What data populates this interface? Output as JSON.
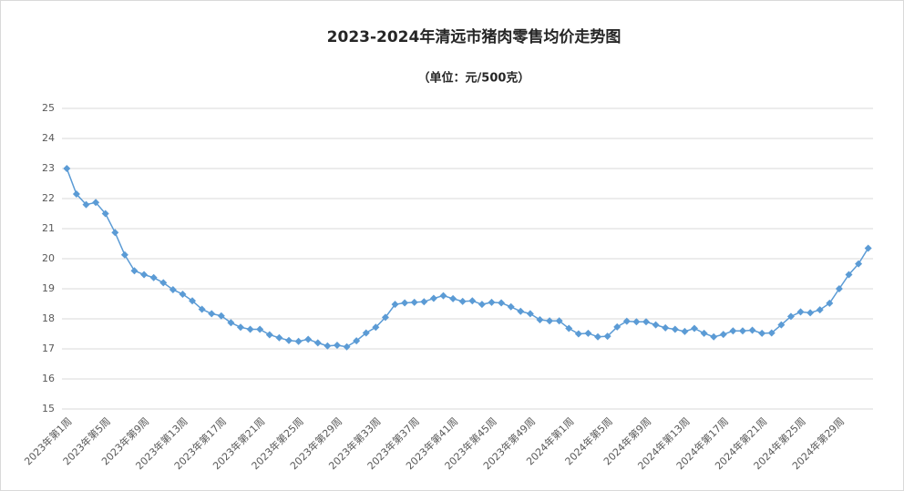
{
  "chart_data": {
    "type": "line",
    "title": "2023-2024年清远市猪肉零售均价走势图",
    "subtitle": "（单位：元/500克）",
    "categories": [
      "2023年第1周",
      null,
      null,
      null,
      "2023年第5周",
      null,
      null,
      null,
      "2023年第9周",
      null,
      null,
      null,
      "2023年第13周",
      null,
      null,
      null,
      "2023年第17周",
      null,
      null,
      null,
      "2023年第21周",
      null,
      null,
      null,
      "2023年第25周",
      null,
      null,
      null,
      "2023年第29周",
      null,
      null,
      null,
      "2023年第33周",
      null,
      null,
      null,
      "2023年第37周",
      null,
      null,
      null,
      "2023年第41周",
      null,
      null,
      null,
      "2023年第45周",
      null,
      null,
      null,
      "2023年第49周",
      null,
      null,
      null,
      "2024年第1周",
      null,
      null,
      null,
      "2024年第5周",
      null,
      null,
      null,
      "2024年第9周",
      null,
      null,
      null,
      "2024年第13周",
      null,
      null,
      null,
      "2024年第17周",
      null,
      null,
      null,
      "2024年第21周",
      null,
      null,
      null,
      "2024年第25周",
      null,
      null,
      null,
      "2024年第29周",
      null,
      null,
      null
    ],
    "values": [
      23.0,
      22.15,
      21.8,
      21.87,
      21.5,
      20.87,
      20.13,
      19.6,
      19.47,
      19.37,
      19.2,
      18.97,
      18.82,
      18.6,
      18.32,
      18.17,
      18.1,
      17.87,
      17.72,
      17.65,
      17.65,
      17.47,
      17.37,
      17.28,
      17.25,
      17.32,
      17.2,
      17.1,
      17.12,
      17.07,
      17.27,
      17.53,
      17.72,
      18.05,
      18.48,
      18.53,
      18.55,
      18.57,
      18.68,
      18.77,
      18.67,
      18.58,
      18.6,
      18.48,
      18.55,
      18.53,
      18.4,
      18.25,
      18.17,
      17.97,
      17.93,
      17.93,
      17.68,
      17.5,
      17.52,
      17.4,
      17.42,
      17.73,
      17.92,
      17.9,
      17.9,
      17.8,
      17.7,
      17.65,
      17.58,
      17.68,
      17.52,
      17.4,
      17.48,
      17.6,
      17.6,
      17.62,
      17.52,
      17.53,
      17.8,
      18.08,
      18.23,
      18.2,
      18.3,
      18.52,
      19.0,
      19.47,
      19.83,
      20.35
    ],
    "color": "#5b9bd5",
    "ylim": [
      15,
      25
    ],
    "yticks": [
      15,
      16,
      17,
      18,
      19,
      20,
      21,
      22,
      23,
      24,
      25
    ],
    "grid": true
  }
}
